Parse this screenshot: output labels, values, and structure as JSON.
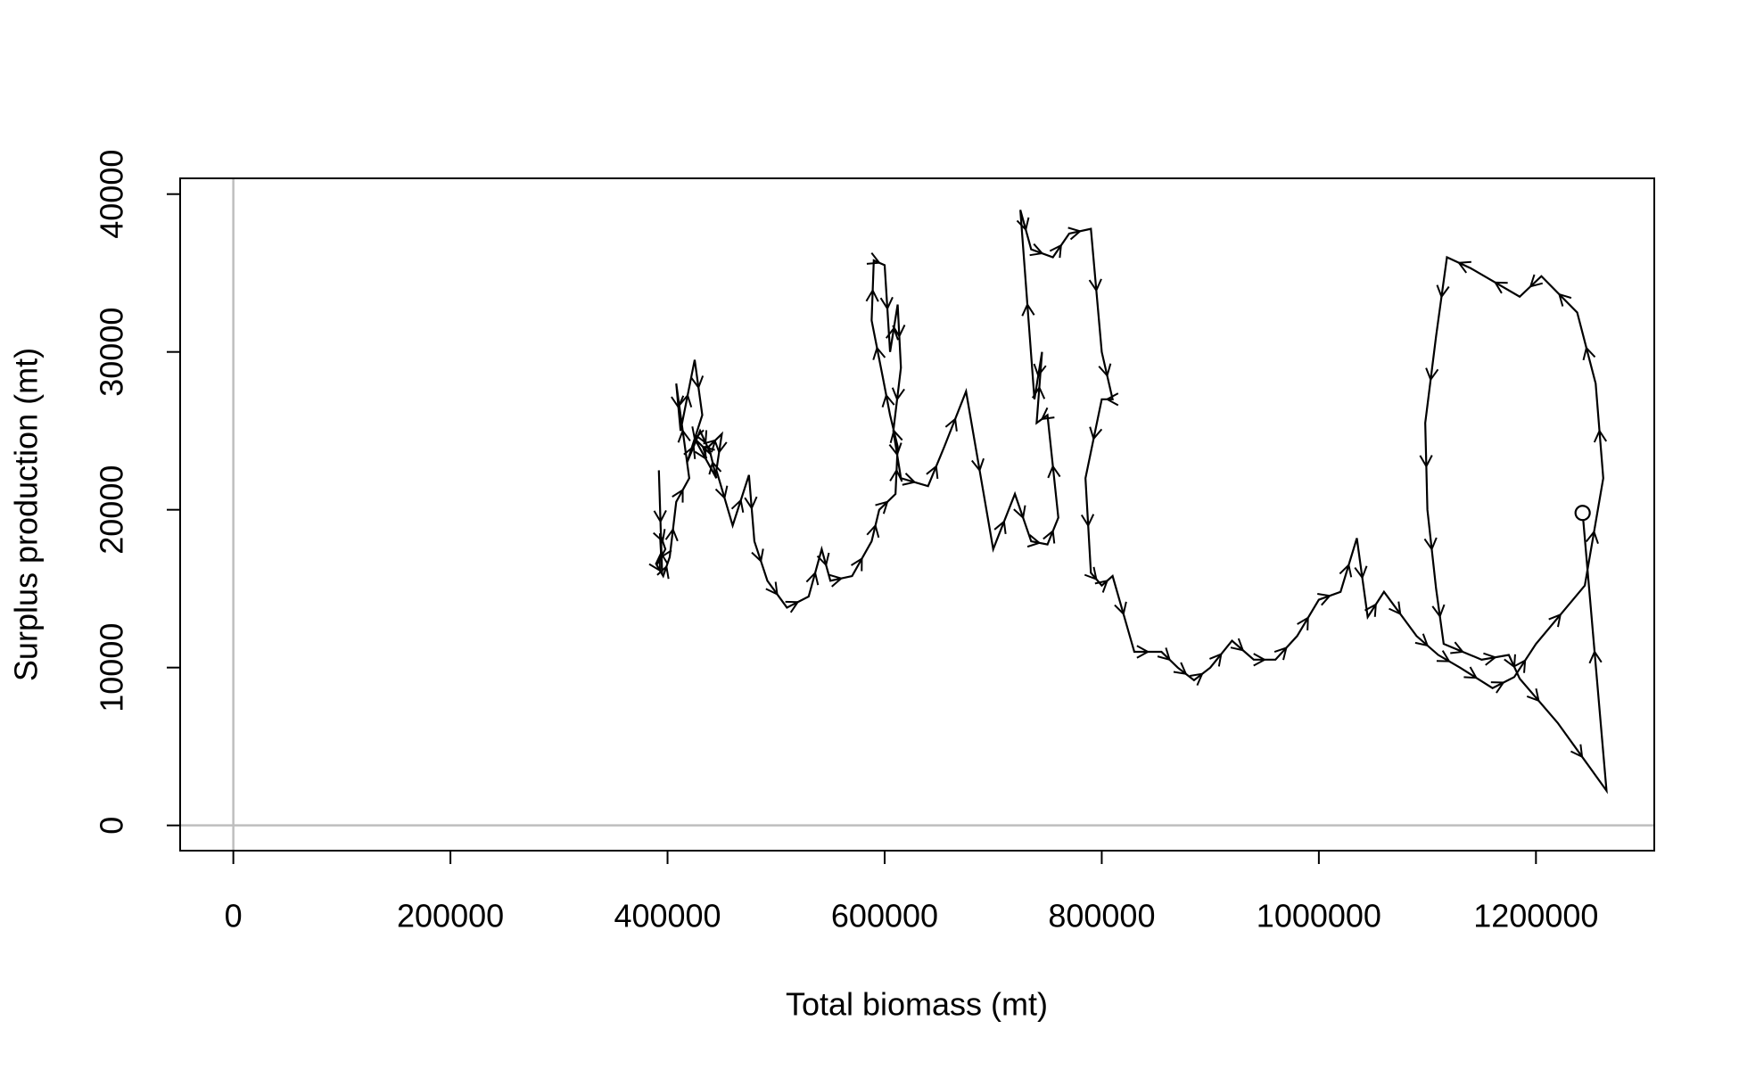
{
  "chart_data": {
    "type": "line",
    "xlabel": "Total biomass (mt)",
    "ylabel": "Surplus production (mt)",
    "x": [
      392000,
      395000,
      393000,
      398000,
      390000,
      396000,
      402000,
      408000,
      420000,
      408000,
      412000,
      425000,
      432000,
      418000,
      430000,
      440000,
      425000,
      445000,
      438000,
      450000,
      445000,
      460000,
      475000,
      480000,
      492000,
      510000,
      530000,
      542000,
      550000,
      570000,
      588000,
      595000,
      610000,
      612000,
      605000,
      598000,
      588000,
      590000,
      600000,
      605000,
      612000,
      615000,
      608000,
      615000,
      640000,
      655000,
      675000,
      700000,
      720000,
      735000,
      750000,
      760000,
      750000,
      740000,
      745000,
      738000,
      725000,
      735000,
      755000,
      770000,
      790000,
      800000,
      810000,
      800000,
      785000,
      790000,
      800000,
      810000,
      830000,
      855000,
      870000,
      885000,
      900000,
      920000,
      940000,
      960000,
      980000,
      1000000,
      1020000,
      1035000,
      1045000,
      1060000,
      1090000,
      1110000,
      1130000,
      1160000,
      1180000,
      1200000,
      1245000,
      1262000,
      1255000,
      1238000,
      1205000,
      1185000,
      1140000,
      1118000,
      1108000,
      1098000,
      1100000,
      1108000,
      1115000,
      1150000,
      1175000,
      1185000,
      1220000,
      1265000,
      1243000
    ],
    "values": [
      22500,
      16000,
      18500,
      17500,
      16500,
      15800,
      17000,
      20500,
      22000,
      28000,
      25000,
      29500,
      26000,
      23000,
      25000,
      23500,
      24500,
      22000,
      24000,
      24800,
      22500,
      19000,
      22200,
      18000,
      15500,
      13800,
      14500,
      17500,
      15500,
      15800,
      18000,
      20000,
      21000,
      24000,
      26000,
      28500,
      32000,
      35800,
      35500,
      30000,
      33000,
      29000,
      25000,
      22000,
      21500,
      24000,
      27500,
      17500,
      21000,
      18000,
      17800,
      19500,
      26000,
      25500,
      30000,
      27000,
      39000,
      36500,
      36000,
      37500,
      37800,
      30000,
      27000,
      27000,
      22000,
      16000,
      15200,
      15800,
      11000,
      11000,
      10000,
      9200,
      10000,
      11700,
      10500,
      10500,
      12000,
      14300,
      14800,
      18200,
      13200,
      14800,
      12000,
      10800,
      10000,
      8700,
      9400,
      11500,
      15200,
      22000,
      28000,
      32500,
      34800,
      33500,
      35300,
      36000,
      31000,
      25500,
      20000,
      15000,
      11500,
      10500,
      10800,
      9300,
      6500,
      2200,
      19800
    ],
    "color": "#000000",
    "xlim": [
      -49000,
      1309000
    ],
    "ylim": [
      -1600,
      41000
    ],
    "xticks": [
      0,
      200000,
      400000,
      600000,
      800000,
      1000000,
      1200000
    ],
    "yticks": [
      0,
      10000,
      20000,
      30000,
      40000
    ],
    "reference_lines": {
      "x": 0,
      "y": 0,
      "color": "#bebebe"
    },
    "arrows": true,
    "end_marker": "circle"
  }
}
